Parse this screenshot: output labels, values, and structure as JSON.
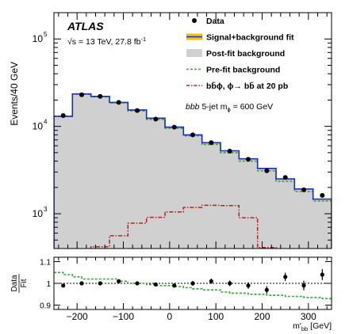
{
  "chart_data": {
    "type": "bar",
    "experiment": "ATLAS",
    "energy_label": "√s = 13 TeV, 27.8 fb",
    "energy_label_sup": "-1",
    "selection_label_pre": "bbb",
    "selection_label_post": " 5-jet m",
    "selection_label_sub": "ϕ",
    "selection_label_value": " = 600 GeV",
    "ylabel": "Events/40 GeV",
    "xlabel_main": "m'",
    "xlabel_sub": "bb",
    "xlabel_unit": " [GeV]",
    "ratio_ylabel_num": "Data",
    "ratio_ylabel_den": "Fit",
    "y_scale": "log",
    "ylim": [
      400,
      200000
    ],
    "xlim": [
      -250,
      350
    ],
    "x_ticks": [
      -200,
      -100,
      0,
      100,
      200,
      300
    ],
    "y_ticks": [
      {
        "label": "10",
        "exp": "3",
        "value": 1000
      },
      {
        "label": "10",
        "exp": "4",
        "value": 10000
      },
      {
        "label": "10",
        "exp": "5",
        "value": 100000
      }
    ],
    "ratio_ylim": [
      0.88,
      1.12
    ],
    "ratio_y_ticks": [
      "0.9",
      "1",
      "1.1"
    ],
    "ratio_y_tick_values": [
      0.9,
      1.0,
      1.1
    ],
    "legend": [
      {
        "label": "Data",
        "style": "marker",
        "color": "#000000"
      },
      {
        "label": "Signal+background fit",
        "style": "band-line",
        "color": "#1a2fc0",
        "band_color": "#f2c200"
      },
      {
        "label": "Post-fit background",
        "style": "fill",
        "color": "#d0d0d0"
      },
      {
        "label": "Pre-fit background",
        "style": "dashed",
        "color": "#3aa33a"
      },
      {
        "label": "bb̄ϕ, ϕ→ bb̄ at 20 pb",
        "style": "dashdot",
        "color": "#b22222"
      }
    ],
    "bin_edges": [
      -250,
      -230,
      -210,
      -190,
      -170,
      -150,
      -130,
      -110,
      -90,
      -70,
      -50,
      -30,
      -10,
      10,
      30,
      50,
      70,
      90,
      110,
      130,
      150,
      170,
      190,
      210,
      230,
      250,
      270,
      290,
      310,
      330,
      350
    ],
    "series": [
      {
        "name": "Data",
        "x": [
          -230,
          -190,
          -150,
          -110,
          -70,
          -30,
          10,
          50,
          90,
          130,
          170,
          210,
          250,
          290,
          330
        ],
        "values": [
          13300,
          23000,
          22000,
          18800,
          15200,
          12100,
          9800,
          8000,
          6500,
          5200,
          4200,
          3100,
          2600,
          1880,
          1620
        ]
      },
      {
        "name": "Signal+background fit",
        "values": [
          13000,
          13000,
          23500,
          23500,
          22000,
          22000,
          18800,
          18800,
          15400,
          15400,
          12400,
          12400,
          9800,
          9800,
          8000,
          8000,
          6500,
          6500,
          5250,
          5250,
          4250,
          4250,
          3300,
          3300,
          2500,
          2500,
          1920,
          1920,
          1470,
          1470
        ]
      },
      {
        "name": "Post-fit background",
        "values": [
          13000,
          13000,
          23500,
          23500,
          22000,
          22000,
          18800,
          18800,
          15400,
          15400,
          12400,
          12400,
          9800,
          9800,
          8000,
          8000,
          6500,
          6500,
          5250,
          5250,
          4250,
          4250,
          3300,
          3300,
          2500,
          2500,
          1920,
          1920,
          1470,
          1470
        ]
      },
      {
        "name": "Pre-fit background",
        "values": [
          13100,
          13100,
          23300,
          23300,
          21800,
          21800,
          18600,
          18600,
          15000,
          15000,
          12000,
          12000,
          9500,
          9500,
          7800,
          7800,
          6200,
          6200,
          5000,
          5000,
          4000,
          4000,
          3100,
          3100,
          2350,
          2350,
          1800,
          1800,
          1400,
          1400
        ]
      },
      {
        "name": "bb̄ϕ, ϕ→ bb̄ at 20 pb",
        "values": [
          0,
          0,
          0,
          0,
          420,
          420,
          560,
          560,
          780,
          780,
          910,
          910,
          1050,
          1050,
          1180,
          1180,
          1250,
          1250,
          1240,
          1240,
          900,
          900,
          410,
          410,
          0,
          0,
          0,
          0,
          0,
          0
        ]
      }
    ],
    "ratio": {
      "x": [
        -230,
        -190,
        -150,
        -110,
        -70,
        -30,
        10,
        50,
        90,
        130,
        170,
        210,
        250,
        290,
        330
      ],
      "values": [
        0.99,
        1.0,
        1.0,
        1.01,
        1.0,
        0.995,
        0.99,
        1.0,
        1.01,
        1.0,
        0.99,
        0.97,
        1.03,
        0.99,
        1.04
      ],
      "errors": [
        0.008,
        0.007,
        0.007,
        0.008,
        0.008,
        0.009,
        0.01,
        0.011,
        0.012,
        0.013,
        0.015,
        0.017,
        0.019,
        0.022,
        0.025
      ],
      "prefit_over_fit": [
        1.05,
        1.04,
        1.03,
        1.02,
        1.02,
        1.02,
        1.02,
        1.01,
        1.0,
        1.0,
        0.995,
        0.99,
        0.99,
        0.985,
        0.98,
        0.975,
        0.97,
        0.97,
        0.96,
        0.955,
        0.955,
        0.95,
        0.95,
        0.945,
        0.945,
        0.94,
        0.94,
        0.935,
        0.935,
        0.93
      ]
    }
  }
}
